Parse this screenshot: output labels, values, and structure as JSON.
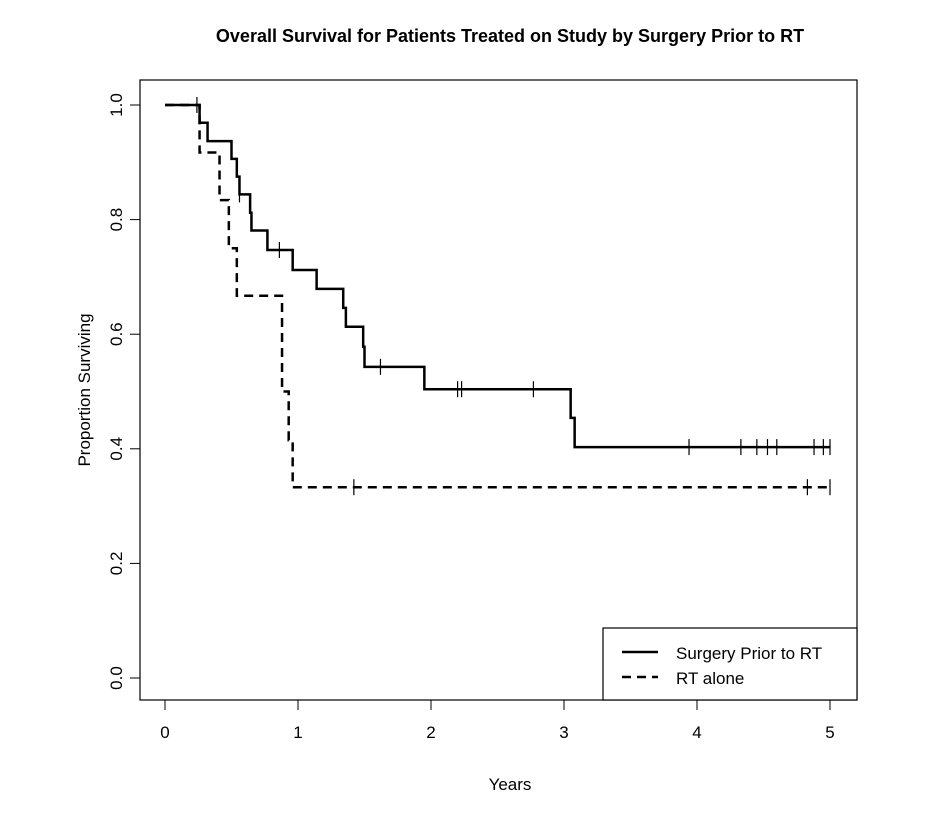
{
  "chart_data": {
    "type": "line",
    "subtype": "kaplan-meier",
    "title": "Overall Survival for Patients Treated on Study by Surgery Prior to RT",
    "xlabel": "Years",
    "ylabel": "Proportion Surviving",
    "xlim": [
      0,
      5
    ],
    "ylim": [
      0,
      1
    ],
    "x_ticks": [
      "0",
      "1",
      "2",
      "3",
      "4",
      "5"
    ],
    "y_ticks": [
      "0.0",
      "0.2",
      "0.4",
      "0.6",
      "0.8",
      "1.0"
    ],
    "grid": false,
    "legend_position": "bottom-right",
    "series": [
      {
        "name": "Surgery Prior to RT",
        "style": "solid",
        "steps": [
          [
            0,
            1.0
          ],
          [
            0.26,
            0.969
          ],
          [
            0.32,
            0.937
          ],
          [
            0.5,
            0.906
          ],
          [
            0.54,
            0.875
          ],
          [
            0.56,
            0.844
          ],
          [
            0.64,
            0.812
          ],
          [
            0.65,
            0.781
          ],
          [
            0.77,
            0.747
          ],
          [
            0.96,
            0.712
          ],
          [
            1.14,
            0.679
          ],
          [
            1.34,
            0.646
          ],
          [
            1.36,
            0.613
          ],
          [
            1.49,
            0.578
          ],
          [
            1.5,
            0.543
          ],
          [
            1.95,
            0.504
          ],
          [
            3.05,
            0.454
          ],
          [
            3.08,
            0.403
          ],
          [
            5.0,
            0.403
          ]
        ],
        "censored": [
          0.24,
          0.56,
          0.86,
          1.62,
          2.2,
          2.23,
          2.77,
          3.94,
          4.33,
          4.45,
          4.53,
          4.6,
          4.88,
          4.95,
          5.0
        ]
      },
      {
        "name": "RT alone",
        "style": "dashed",
        "steps": [
          [
            0,
            1.0
          ],
          [
            0.26,
            0.917
          ],
          [
            0.41,
            0.834
          ],
          [
            0.48,
            0.75
          ],
          [
            0.54,
            0.667
          ],
          [
            0.88,
            0.5
          ],
          [
            0.93,
            0.415
          ],
          [
            0.96,
            0.333
          ],
          [
            5.0,
            0.333
          ]
        ],
        "censored": [
          1.42,
          4.83,
          5.0
        ]
      }
    ]
  }
}
